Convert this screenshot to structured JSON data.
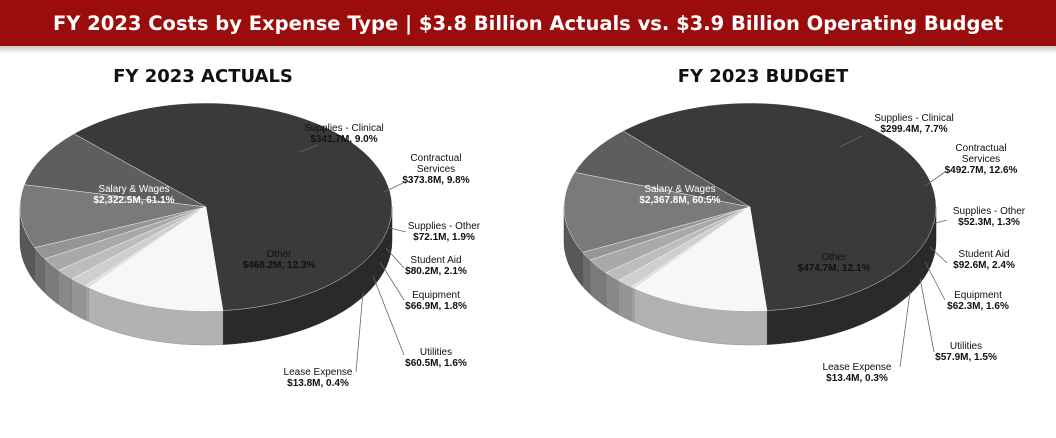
{
  "header": {
    "title": "FY 2023 Costs by Expense Type | $3.8 Billion Actuals vs. $3.9 Billion Operating Budget"
  },
  "chart_data": [
    {
      "type": "pie",
      "title": "FY 2023 ACTUALS",
      "slices": [
        {
          "name": "Salary & Wages",
          "value_text": "$2,322.5M, 61.1%",
          "value": 2322.5,
          "percent": 61.1,
          "color": "#3a3a3a"
        },
        {
          "name": "Supplies - Clinical",
          "value_text": "$341.7M, 9.0%",
          "value": 341.7,
          "percent": 9.0,
          "color": "#5e5e5e"
        },
        {
          "name": "Contractual Services",
          "value_text": "$373.8M, 9.8%",
          "value": 373.8,
          "percent": 9.8,
          "color": "#7a7a7a"
        },
        {
          "name": "Supplies - Other",
          "value_text": "$72.1M, 1.9%",
          "value": 72.1,
          "percent": 1.9,
          "color": "#959595"
        },
        {
          "name": "Student Aid",
          "value_text": "$80.2M, 2.1%",
          "value": 80.2,
          "percent": 2.1,
          "color": "#a9a9a9"
        },
        {
          "name": "Equipment",
          "value_text": "$66.9M, 1.8%",
          "value": 66.9,
          "percent": 1.8,
          "color": "#bdbdbd"
        },
        {
          "name": "Utilities",
          "value_text": "$60.5M, 1.6%",
          "value": 60.5,
          "percent": 1.6,
          "color": "#cfcfcf"
        },
        {
          "name": "Lease Expense",
          "value_text": "$13.8M, 0.4%",
          "value": 13.8,
          "percent": 0.4,
          "color": "#dedede"
        },
        {
          "name": "Other",
          "value_text": "$468.2M, 12.3%",
          "value": 468.2,
          "percent": 12.3,
          "color": "#f7f7f7"
        }
      ]
    },
    {
      "type": "pie",
      "title": "FY 2023 BUDGET",
      "slices": [
        {
          "name": "Salary & Wages",
          "value_text": "$2,367.8M, 60.5%",
          "value": 2367.8,
          "percent": 60.5,
          "color": "#3a3a3a"
        },
        {
          "name": "Supplies - Clinical",
          "value_text": "$299.4M, 7.7%",
          "value": 299.4,
          "percent": 7.7,
          "color": "#5e5e5e"
        },
        {
          "name": "Contractual Services",
          "value_text": "$492.7M, 12.6%",
          "value": 492.7,
          "percent": 12.6,
          "color": "#7a7a7a"
        },
        {
          "name": "Supplies - Other",
          "value_text": "$52.3M, 1.3%",
          "value": 52.3,
          "percent": 1.3,
          "color": "#959595"
        },
        {
          "name": "Student Aid",
          "value_text": "$92.6M, 2.4%",
          "value": 92.6,
          "percent": 2.4,
          "color": "#a9a9a9"
        },
        {
          "name": "Equipment",
          "value_text": "$62.3M, 1.6%",
          "value": 62.3,
          "percent": 1.6,
          "color": "#bdbdbd"
        },
        {
          "name": "Utilities",
          "value_text": "$57.9M, 1.5%",
          "value": 57.9,
          "percent": 1.5,
          "color": "#cfcfcf"
        },
        {
          "name": "Lease Expense",
          "value_text": "$13.4M, 0.3%",
          "value": 13.4,
          "percent": 0.3,
          "color": "#dedede"
        },
        {
          "name": "Other",
          "value_text": "$474.7M, 12.1%",
          "value": 474.7,
          "percent": 12.1,
          "color": "#f7f7f7"
        }
      ]
    }
  ]
}
